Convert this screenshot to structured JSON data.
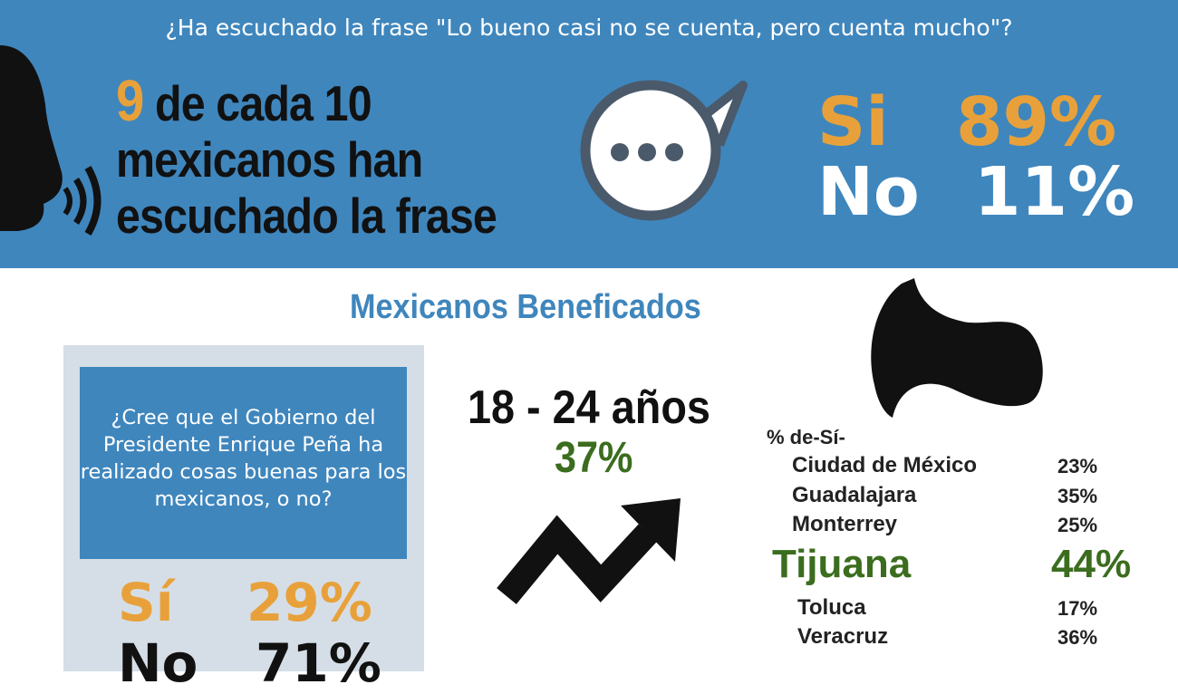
{
  "banner": {
    "question": "¿Ha escuchado la frase \"Lo bueno casi no se cuenta, pero cuenta mucho\"?",
    "headline_number": "9",
    "headline_line1": " de cada 10",
    "headline_line2": "mexicanos han",
    "headline_line3": "escuchado la frase",
    "si_label": "Si",
    "si_value": "89%",
    "no_label": "No",
    "no_value": "11%"
  },
  "section": {
    "title": "Mexicanos Beneficados",
    "box_question": "¿Cree que el Gobierno del Presidente Enrique Peña ha realizado cosas buenas para los mexicanos, o no?",
    "si_label": "Sí",
    "si_value": "29%",
    "no_label": "No",
    "no_value": "71%",
    "age_label": "18 - 24 años",
    "age_value": "37%",
    "pct_heading": "% de-Sí-",
    "cities": [
      {
        "name": "Ciudad de México",
        "value": "23%"
      },
      {
        "name": "Guadalajara",
        "value": "35%"
      },
      {
        "name": "Monterrey",
        "value": "25%"
      },
      {
        "name": "Tijuana",
        "value": "44%"
      },
      {
        "name": "Toluca",
        "value": "17%"
      },
      {
        "name": "Veracruz",
        "value": "36%"
      }
    ]
  },
  "colors": {
    "banner_blue": "#3f86bd",
    "orange": "#e8a13a",
    "green": "#3b6d1e",
    "grey_panel": "#d5dee6"
  },
  "icons": [
    "speaking-head-icon",
    "speech-bubble-icon",
    "trend-arrow-icon",
    "hair-silhouette-icon"
  ]
}
